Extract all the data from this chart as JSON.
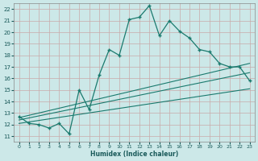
{
  "xlabel": "Humidex (Indice chaleur)",
  "xlim": [
    -0.5,
    23.5
  ],
  "ylim": [
    10.5,
    22.5
  ],
  "xticks": [
    0,
    1,
    2,
    3,
    4,
    5,
    6,
    7,
    8,
    9,
    10,
    11,
    12,
    13,
    14,
    15,
    16,
    17,
    18,
    19,
    20,
    21,
    22,
    23
  ],
  "yticks": [
    11,
    12,
    13,
    14,
    15,
    16,
    17,
    18,
    19,
    20,
    21,
    22
  ],
  "background_color": "#cce8e8",
  "line_color": "#1a7a6e",
  "main_x": [
    0,
    1,
    2,
    3,
    4,
    5,
    6,
    7,
    8,
    9,
    10,
    11,
    12,
    13,
    14,
    15,
    16,
    17,
    18,
    19,
    20,
    21,
    22,
    23
  ],
  "main_y": [
    12.7,
    12.1,
    12.0,
    11.7,
    12.1,
    11.2,
    15.0,
    13.3,
    16.3,
    18.5,
    18.0,
    21.1,
    21.3,
    22.3,
    19.7,
    21.0,
    20.1,
    19.5,
    18.5,
    18.3,
    17.3,
    17.0,
    17.0,
    15.8
  ],
  "trend1_x": [
    0,
    23
  ],
  "trend1_y": [
    12.6,
    17.3
  ],
  "trend2_x": [
    0,
    23
  ],
  "trend2_y": [
    12.4,
    16.5
  ],
  "trend3_x": [
    0,
    23
  ],
  "trend3_y": [
    12.1,
    15.1
  ]
}
